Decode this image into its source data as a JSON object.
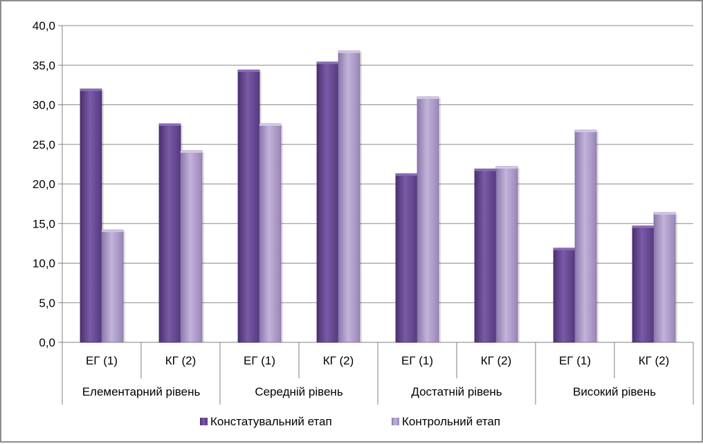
{
  "chart_data": {
    "type": "bar",
    "groups": [
      "Елементарний рівень",
      "Середній рівень",
      "Достатній рівень",
      "Високий рівень"
    ],
    "categories": [
      "ЕГ (1)",
      "КГ (2)",
      "ЕГ (1)",
      "КГ (2)",
      "ЕГ (1)",
      "КГ (2)",
      "ЕГ (1)",
      "КГ (2)"
    ],
    "series": [
      {
        "name": "Констатувальний етап",
        "color": "#6a4a93",
        "values": [
          32.0,
          27.6,
          34.4,
          35.4,
          21.3,
          21.9,
          11.9,
          14.7
        ]
      },
      {
        "name": "Контрольний етап",
        "color": "#a996c4",
        "values": [
          14.2,
          24.2,
          27.6,
          36.8,
          31.0,
          22.2,
          26.8,
          16.4
        ]
      }
    ],
    "ylim": [
      0,
      40
    ],
    "yticks": [
      "0,0",
      "5,0",
      "10,0",
      "15,0",
      "20,0",
      "25,0",
      "30,0",
      "35,0",
      "40,0"
    ],
    "grid": true,
    "legend_position": "bottom"
  }
}
